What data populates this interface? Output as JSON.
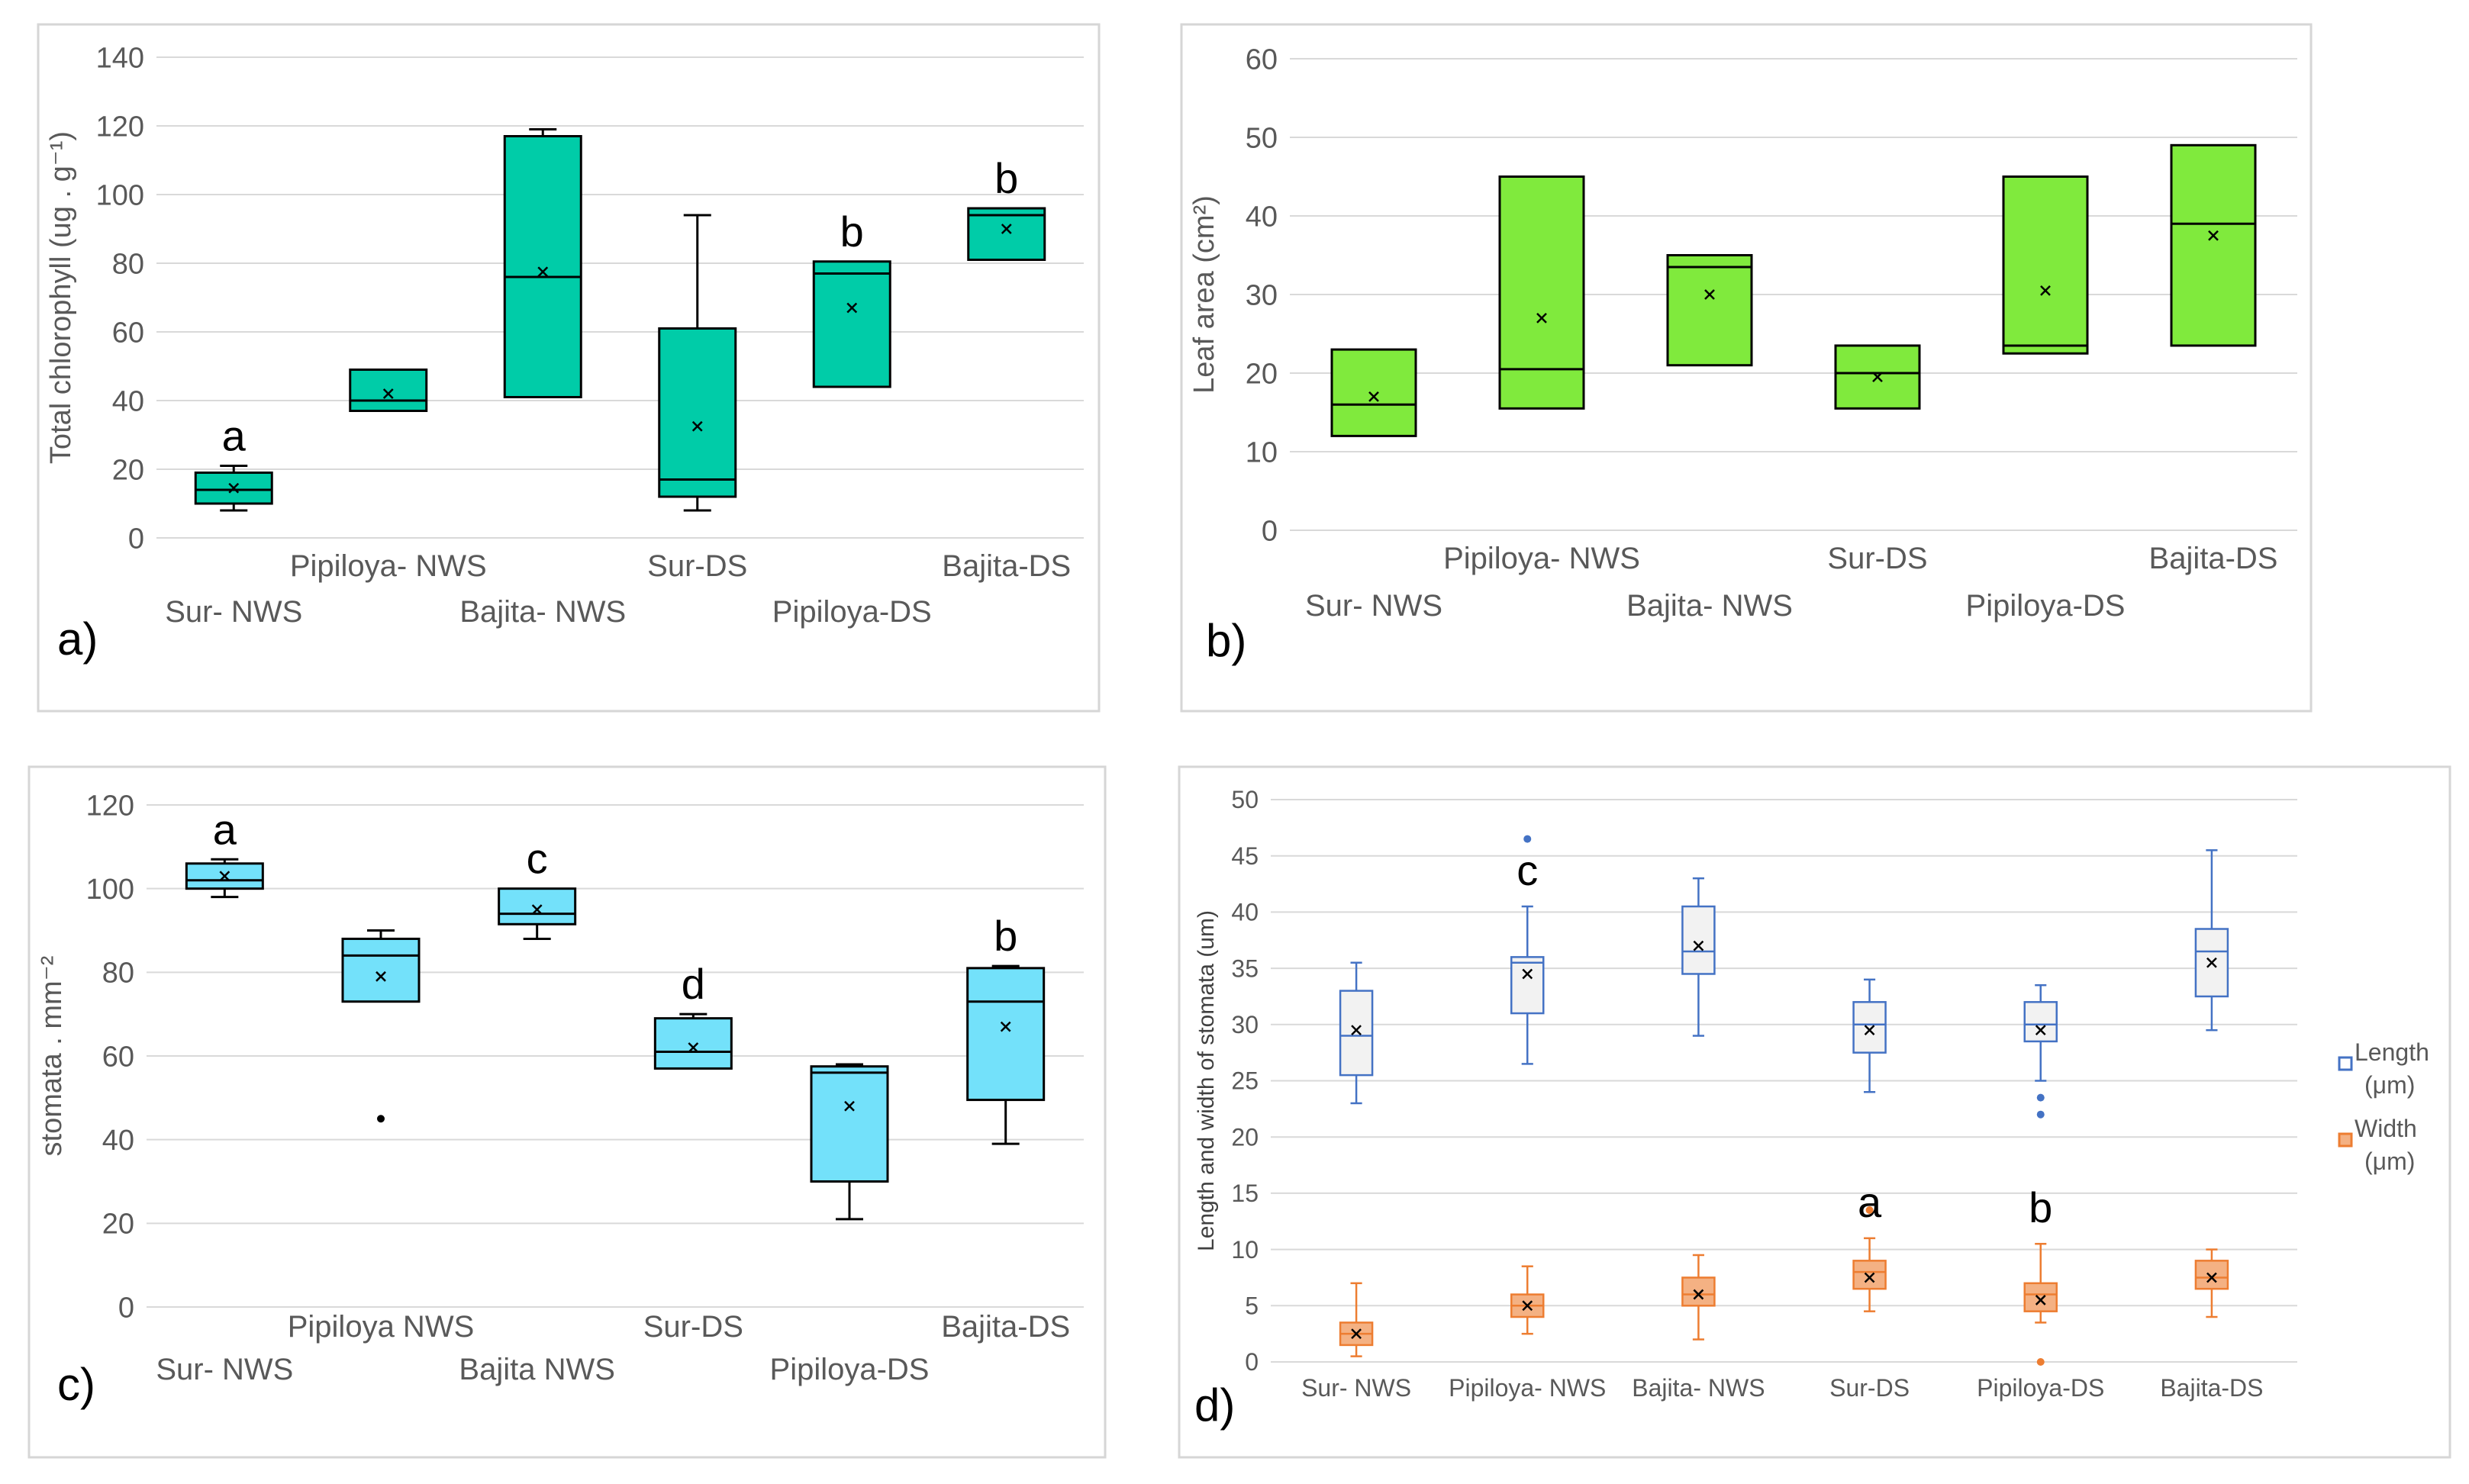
{
  "chart_data": [
    {
      "id": "a",
      "type": "box",
      "panel_label": "a)",
      "ylabel": "Total chlorophyll (ug . g⁻¹)",
      "ylim": [
        0,
        140
      ],
      "yticks": [
        0,
        20,
        40,
        60,
        80,
        100,
        120,
        140
      ],
      "grid": true,
      "color": "#00CCA8",
      "categories": [
        "Sur- NWS",
        "Pipiloya- NWS",
        "Bajita- NWS",
        "Sur-DS",
        "Pipiloya-DS",
        "Bajita-DS"
      ],
      "boxes": [
        {
          "min": 8,
          "q1": 10,
          "median": 14,
          "q3": 19,
          "max": 21,
          "mean": 14.5,
          "letter": "a"
        },
        {
          "min": 37,
          "q1": 37,
          "median": 40,
          "q3": 49,
          "max": 49,
          "mean": 42,
          "letter": ""
        },
        {
          "min": 41,
          "q1": 41,
          "median": 76,
          "q3": 117,
          "max": 119,
          "mean": 77.5,
          "letter": ""
        },
        {
          "min": 8,
          "q1": 12,
          "median": 17,
          "q3": 61,
          "max": 94,
          "mean": 32.5,
          "letter": ""
        },
        {
          "min": 44,
          "q1": 44,
          "median": 77,
          "q3": 80.5,
          "max": 80.5,
          "mean": 67,
          "letter": "b"
        },
        {
          "min": 81,
          "q1": 81,
          "median": 94,
          "q3": 96,
          "max": 96,
          "mean": 90,
          "letter": "b"
        }
      ]
    },
    {
      "id": "b",
      "type": "box",
      "panel_label": "b)",
      "ylabel": "Leaf area (cm²)",
      "ylim": [
        0,
        60
      ],
      "yticks": [
        0,
        10,
        20,
        30,
        40,
        50,
        60
      ],
      "grid": true,
      "color": "#80EA3D",
      "categories": [
        "Sur- NWS",
        "Pipiloya- NWS",
        "Bajita- NWS",
        "Sur-DS",
        "Pipiloya-DS",
        "Bajita-DS"
      ],
      "boxes": [
        {
          "min": 12,
          "q1": 12,
          "median": 16,
          "q3": 23,
          "max": 23,
          "mean": 17,
          "letter": ""
        },
        {
          "min": 15.5,
          "q1": 15.5,
          "median": 20.5,
          "q3": 45,
          "max": 45,
          "mean": 27,
          "letter": ""
        },
        {
          "min": 21,
          "q1": 21,
          "median": 33.5,
          "q3": 35,
          "max": 35,
          "mean": 30,
          "letter": ""
        },
        {
          "min": 15.5,
          "q1": 15.5,
          "median": 20,
          "q3": 23.5,
          "max": 23.5,
          "mean": 19.5,
          "letter": ""
        },
        {
          "min": 22.5,
          "q1": 22.5,
          "median": 23.5,
          "q3": 45,
          "max": 45,
          "mean": 30.5,
          "letter": ""
        },
        {
          "min": 23.5,
          "q1": 23.5,
          "median": 39,
          "q3": 49,
          "max": 49,
          "mean": 37.5,
          "letter": ""
        }
      ]
    },
    {
      "id": "c",
      "type": "box",
      "panel_label": "c)",
      "ylabel": "stomata . mm⁻²",
      "ylim": [
        0,
        120
      ],
      "yticks": [
        0,
        20,
        40,
        60,
        80,
        100,
        120
      ],
      "grid": true,
      "color": "#73E1FA",
      "categories": [
        "Sur- NWS",
        "Pipiloya NWS",
        "Bajita NWS",
        "Sur-DS",
        "Pipiloya-DS",
        "Bajita-DS"
      ],
      "boxes": [
        {
          "min": 98,
          "q1": 100,
          "median": 102,
          "q3": 106,
          "max": 107,
          "mean": 103,
          "letter": "a",
          "outliers": []
        },
        {
          "min": 73,
          "q1": 73,
          "median": 84,
          "q3": 88,
          "max": 90,
          "mean": 79,
          "letter": "",
          "outliers": [
            45
          ]
        },
        {
          "min": 88,
          "q1": 91.5,
          "median": 94,
          "q3": 100,
          "max": 100,
          "mean": 95,
          "letter": "c",
          "outliers": []
        },
        {
          "min": 57,
          "q1": 57,
          "median": 61,
          "q3": 69,
          "max": 70,
          "mean": 62,
          "letter": "d",
          "outliers": []
        },
        {
          "min": 21,
          "q1": 30,
          "median": 56,
          "q3": 57.5,
          "max": 58,
          "mean": 48,
          "letter": "",
          "outliers": []
        },
        {
          "min": 39,
          "q1": 49.5,
          "median": 73,
          "q3": 81,
          "max": 81.5,
          "mean": 67,
          "letter": "b",
          "outliers": []
        }
      ]
    },
    {
      "id": "d",
      "type": "box",
      "panel_label": "d)",
      "ylabel": "Length and width of stomata (um)",
      "ylim": [
        0,
        50
      ],
      "yticks": [
        0,
        5,
        10,
        15,
        20,
        25,
        30,
        35,
        40,
        45,
        50
      ],
      "grid": true,
      "categories": [
        "Sur- NWS",
        "Pipiloya- NWS",
        "Bajita- NWS",
        "Sur-DS",
        "Pipiloya-DS",
        "Bajita-DS"
      ],
      "legend": [
        {
          "name": "Length",
          "unit": "(μm)",
          "color": "#4472C4"
        },
        {
          "name": "Width",
          "unit": "(μm)",
          "color": "#ED7D31"
        }
      ],
      "series": [
        {
          "name": "Length",
          "color": "#4472C4",
          "fill": "#F2F2F2",
          "boxes": [
            {
              "min": 23,
              "q1": 25.5,
              "median": 29,
              "q3": 33,
              "max": 35.5,
              "mean": 29.5,
              "letter": "",
              "outliers": []
            },
            {
              "min": 26.5,
              "q1": 31,
              "median": 35.5,
              "q3": 36,
              "max": 40.5,
              "mean": 34.5,
              "letter": "c",
              "outliers": [
                46.5
              ]
            },
            {
              "min": 29,
              "q1": 34.5,
              "median": 36.5,
              "q3": 40.5,
              "max": 43,
              "mean": 37,
              "letter": "",
              "outliers": []
            },
            {
              "min": 24,
              "q1": 27.5,
              "median": 30,
              "q3": 32,
              "max": 34,
              "mean": 29.5,
              "letter": "",
              "outliers": []
            },
            {
              "min": 25,
              "q1": 28.5,
              "median": 30,
              "q3": 32,
              "max": 33.5,
              "mean": 29.5,
              "letter": "",
              "outliers": [
                23.5,
                22
              ]
            },
            {
              "min": 29.5,
              "q1": 32.5,
              "median": 36.5,
              "q3": 38.5,
              "max": 45.5,
              "mean": 35.5,
              "letter": "",
              "outliers": []
            }
          ]
        },
        {
          "name": "Width",
          "color": "#ED7D31",
          "fill": "#F4B183",
          "boxes": [
            {
              "min": 0.5,
              "q1": 1.5,
              "median": 2.5,
              "q3": 3.5,
              "max": 7,
              "mean": 2.5,
              "letter": "",
              "outliers": []
            },
            {
              "min": 2.5,
              "q1": 4,
              "median": 5,
              "q3": 6,
              "max": 8.5,
              "mean": 5,
              "letter": "",
              "outliers": []
            },
            {
              "min": 2,
              "q1": 5,
              "median": 6,
              "q3": 7.5,
              "max": 9.5,
              "mean": 6,
              "letter": "",
              "outliers": []
            },
            {
              "min": 4.5,
              "q1": 6.5,
              "median": 8,
              "q3": 9,
              "max": 11,
              "mean": 7.5,
              "letter": "a",
              "outliers": [
                13.5
              ]
            },
            {
              "min": 3.5,
              "q1": 4.5,
              "median": 6,
              "q3": 7,
              "max": 10.5,
              "mean": 5.5,
              "letter": "b",
              "outliers": [
                0
              ]
            },
            {
              "min": 4,
              "q1": 6.5,
              "median": 7.5,
              "q3": 9,
              "max": 10,
              "mean": 7.5,
              "letter": "",
              "outliers": []
            }
          ]
        }
      ]
    }
  ]
}
